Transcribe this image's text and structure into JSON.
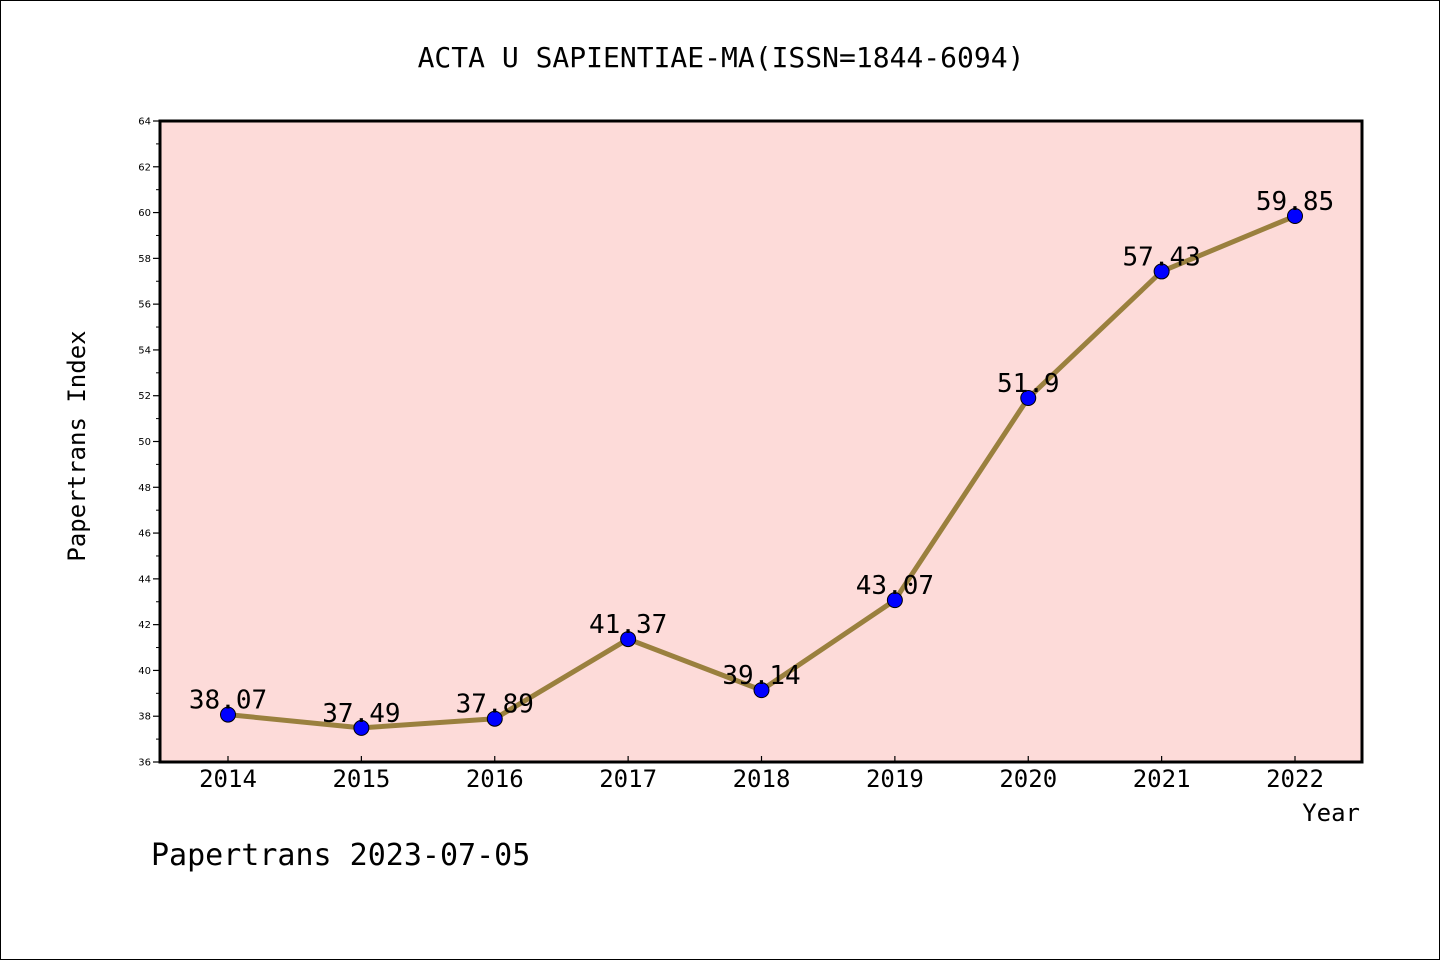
{
  "chart_data": {
    "type": "line",
    "title": "ACTA U SAPIENTIAE-MA(ISSN=1844-6094)",
    "xlabel": "Year",
    "ylabel": "Papertrans Index",
    "categories": [
      "2014",
      "2015",
      "2016",
      "2017",
      "2018",
      "2019",
      "2020",
      "2021",
      "2022"
    ],
    "series": [
      {
        "values": [
          38.07,
          37.49,
          37.89,
          41.37,
          39.14,
          43.07,
          51.9,
          57.43,
          59.85
        ],
        "labels": [
          "38.07",
          "37.49",
          "37.89",
          "41.37",
          "39.14",
          "43.07",
          "51.9",
          "57.43",
          "59.85"
        ]
      }
    ],
    "ylim": [
      36,
      64
    ],
    "yticks": [
      "36",
      "38",
      "40",
      "42",
      "44",
      "46",
      "48",
      "50",
      "52",
      "54",
      "56",
      "58",
      "60",
      "62",
      "64"
    ],
    "grid": false,
    "colors": {
      "plot_background": "#fddbd9",
      "line": "#9a803e",
      "marker": "#0000ff"
    }
  },
  "footer": "Papertrans 2023-07-05"
}
